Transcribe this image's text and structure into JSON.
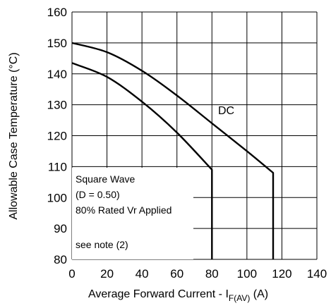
{
  "chart_data": {
    "type": "line",
    "title": "",
    "xlabel": "Average Forward Current - I",
    "xlabel_sub": "F(AV)",
    "xlabel_unit": " (A)",
    "ylabel": "Allowable Case Temperature (°C)",
    "xlim": [
      0,
      140
    ],
    "ylim": [
      80,
      160
    ],
    "x_ticks": [
      0,
      20,
      40,
      60,
      80,
      100,
      120,
      140
    ],
    "y_ticks": [
      80,
      90,
      100,
      110,
      120,
      130,
      140,
      150,
      160
    ],
    "grid": true,
    "series": [
      {
        "name": "DC",
        "points": [
          [
            0,
            150
          ],
          [
            20,
            147
          ],
          [
            40,
            141
          ],
          [
            60,
            133
          ],
          [
            80,
            124
          ],
          [
            100,
            115
          ],
          [
            115,
            108
          ],
          [
            115,
            80
          ]
        ]
      },
      {
        "name": "",
        "points": [
          [
            0,
            143.5
          ],
          [
            20,
            139
          ],
          [
            40,
            131
          ],
          [
            60,
            121
          ],
          [
            80,
            109
          ],
          [
            80,
            80
          ]
        ]
      }
    ],
    "annotations": [
      "Square Wave",
      "(D = 0.50)",
      "80% Rated Vr Applied",
      "see note (2)"
    ]
  }
}
